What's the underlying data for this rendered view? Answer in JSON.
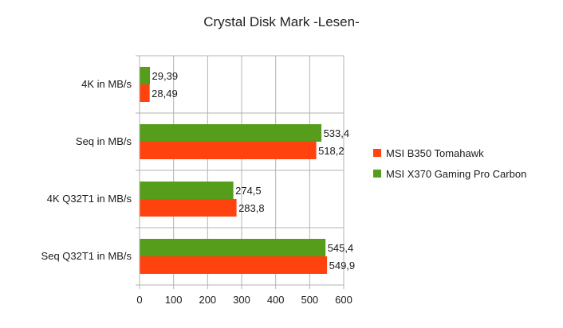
{
  "chart_data": {
    "type": "bar",
    "orientation": "horizontal",
    "title": "Crystal Disk Mark -Lesen-",
    "categories": [
      "4K in MB/s",
      "Seq in MB/s",
      "4K Q32T1 in MB/s",
      "Seq Q32T1 in MB/s"
    ],
    "series": [
      {
        "name": "MSI B350 Tomahawk",
        "color": "#ff420e",
        "values": [
          28.49,
          518.2,
          283.8,
          549.9
        ],
        "labels": [
          "28,49",
          "518,2",
          "283,8",
          "549,9"
        ]
      },
      {
        "name": "MSI X370 Gaming Pro Carbon",
        "color": "#579d1c",
        "values": [
          29.39,
          533.4,
          274.5,
          545.4
        ],
        "labels": [
          "29,39",
          "533,4",
          "274,5",
          "545,4"
        ]
      }
    ],
    "xlim": [
      0,
      600
    ],
    "xticks": [
      0,
      100,
      200,
      300,
      400,
      500,
      600
    ],
    "grid": true,
    "legend": "right",
    "xlabel": "",
    "ylabel": ""
  }
}
